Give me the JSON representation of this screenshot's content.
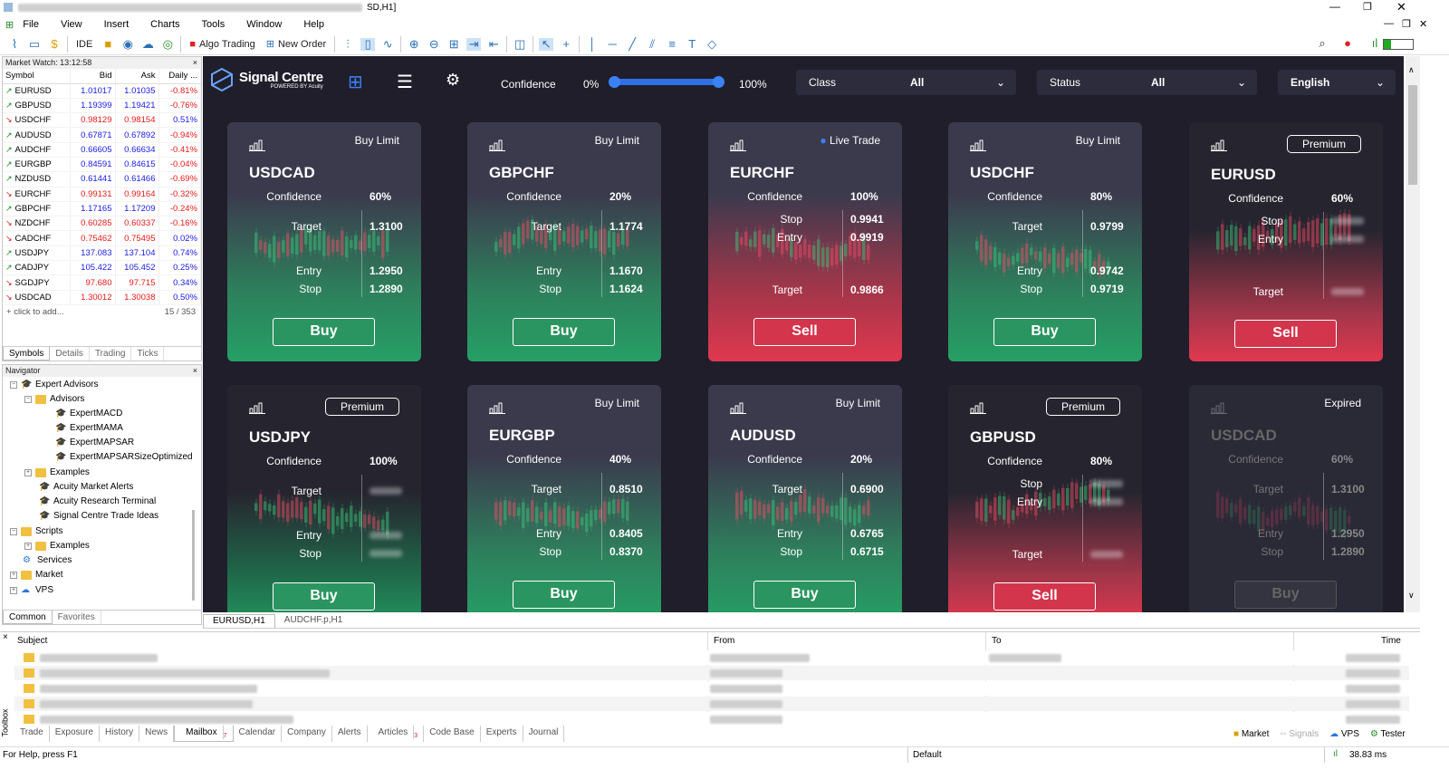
{
  "titlebar": {
    "title_tail": "SD,H1]"
  },
  "menu": [
    "File",
    "View",
    "Insert",
    "Charts",
    "Tools",
    "Window",
    "Help"
  ],
  "toolbar": {
    "ide": "IDE",
    "algo": "Algo Trading",
    "new_order": "New Order"
  },
  "market_watch": {
    "title": "Market Watch: 13:12:58",
    "cols": [
      "Symbol",
      "Bid",
      "Ask",
      "Daily ..."
    ],
    "rows": [
      {
        "s": "EURUSD",
        "b": "1.01017",
        "a": "1.01035",
        "d": "-0.81%",
        "dir": "up"
      },
      {
        "s": "GBPUSD",
        "b": "1.19399",
        "a": "1.19421",
        "d": "-0.76%",
        "dir": "up"
      },
      {
        "s": "USDCHF",
        "b": "0.98129",
        "a": "0.98154",
        "d": "0.51%",
        "dir": "dn"
      },
      {
        "s": "AUDUSD",
        "b": "0.67871",
        "a": "0.67892",
        "d": "-0.94%",
        "dir": "up"
      },
      {
        "s": "AUDCHF",
        "b": "0.66605",
        "a": "0.66634",
        "d": "-0.41%",
        "dir": "up"
      },
      {
        "s": "EURGBP",
        "b": "0.84591",
        "a": "0.84615",
        "d": "-0.04%",
        "dir": "up"
      },
      {
        "s": "NZDUSD",
        "b": "0.61441",
        "a": "0.61466",
        "d": "-0.69%",
        "dir": "up"
      },
      {
        "s": "EURCHF",
        "b": "0.99131",
        "a": "0.99164",
        "d": "-0.32%",
        "dir": "dn"
      },
      {
        "s": "GBPCHF",
        "b": "1.17165",
        "a": "1.17209",
        "d": "-0.24%",
        "dir": "up"
      },
      {
        "s": "NZDCHF",
        "b": "0.60285",
        "a": "0.60337",
        "d": "-0.16%",
        "dir": "dn"
      },
      {
        "s": "CADCHF",
        "b": "0.75462",
        "a": "0.75495",
        "d": "0.02%",
        "dir": "dn"
      },
      {
        "s": "USDJPY",
        "b": "137.083",
        "a": "137.104",
        "d": "0.74%",
        "dir": "up"
      },
      {
        "s": "CADJPY",
        "b": "105.422",
        "a": "105.452",
        "d": "0.25%",
        "dir": "up"
      },
      {
        "s": "SGDJPY",
        "b": "97.680",
        "a": "97.715",
        "d": "0.34%",
        "dir": "dn"
      },
      {
        "s": "USDCAD",
        "b": "1.30012",
        "a": "1.30038",
        "d": "0.50%",
        "dir": "dn"
      }
    ],
    "add": "click to add...",
    "count": "15 / 353",
    "tabs": [
      "Symbols",
      "Details",
      "Trading",
      "Ticks"
    ]
  },
  "navigator": {
    "title": "Navigator",
    "items": [
      "Expert Advisors",
      "Advisors",
      "ExpertMACD",
      "ExpertMAMA",
      "ExpertMAPSAR",
      "ExpertMAPSARSizeOptimized",
      "Examples",
      "Acuity Market Alerts",
      "Acuity Research Terminal",
      "Signal Centre Trade Ideas",
      "Scripts",
      "Examples",
      "Services",
      "Market",
      "VPS"
    ],
    "tabs": [
      "Common",
      "Favorites"
    ]
  },
  "header": {
    "brand": "Signal Centre",
    "brand_sub": "POWERED BY Acuity",
    "confidence_label": "Confidence",
    "conf_min": "0%",
    "conf_max": "100%",
    "class_label": "Class",
    "class_value": "All",
    "status_label": "Status",
    "status_value": "All",
    "language": "English"
  },
  "cards": [
    {
      "sym": "USDCAD",
      "tag": "Buy Limit",
      "conf": "60%",
      "rows": [
        [
          "Target",
          "1.3100"
        ],
        [
          "Entry",
          "1.2950"
        ],
        [
          "Stop",
          "1.2890"
        ]
      ],
      "btn": "Buy",
      "kind": "g"
    },
    {
      "sym": "GBPCHF",
      "tag": "Buy Limit",
      "conf": "20%",
      "rows": [
        [
          "Target",
          "1.1774"
        ],
        [
          "Entry",
          "1.1670"
        ],
        [
          "Stop",
          "1.1624"
        ]
      ],
      "btn": "Buy",
      "kind": "g"
    },
    {
      "sym": "EURCHF",
      "tag": "Live Trade",
      "conf": "100%",
      "rows": [
        [
          "Stop",
          "0.9941"
        ],
        [
          "Entry",
          "0.9919"
        ],
        [
          "Target",
          "0.9866"
        ]
      ],
      "btn": "Sell",
      "kind": "r"
    },
    {
      "sym": "USDCHF",
      "tag": "Buy Limit",
      "conf": "80%",
      "rows": [
        [
          "Target",
          "0.9799"
        ],
        [
          "Entry",
          "0.9742"
        ],
        [
          "Stop",
          "0.9719"
        ]
      ],
      "btn": "Buy",
      "kind": "g"
    },
    {
      "sym": "EURUSD",
      "tag": "Premium",
      "conf": "60%",
      "rows": [
        [
          "Stop",
          ""
        ],
        [
          "Entry",
          ""
        ],
        [
          "Target",
          ""
        ]
      ],
      "btn": "Sell",
      "kind": "pr"
    },
    {
      "sym": "USDJPY",
      "tag": "Premium",
      "conf": "100%",
      "rows": [
        [
          "Target",
          ""
        ],
        [
          "Entry",
          ""
        ],
        [
          "Stop",
          ""
        ]
      ],
      "btn": "Buy",
      "kind": "pg"
    },
    {
      "sym": "EURGBP",
      "tag": "Buy Limit",
      "conf": "40%",
      "rows": [
        [
          "Target",
          "0.8510"
        ],
        [
          "Entry",
          "0.8405"
        ],
        [
          "Stop",
          "0.8370"
        ]
      ],
      "btn": "Buy",
      "kind": "g"
    },
    {
      "sym": "AUDUSD",
      "tag": "Buy Limit",
      "conf": "20%",
      "rows": [
        [
          "Target",
          "0.6900"
        ],
        [
          "Entry",
          "0.6765"
        ],
        [
          "Stop",
          "0.6715"
        ]
      ],
      "btn": "Buy",
      "kind": "g"
    },
    {
      "sym": "GBPUSD",
      "tag": "Premium",
      "conf": "80%",
      "rows": [
        [
          "Stop",
          ""
        ],
        [
          "Entry",
          ""
        ],
        [
          "Target",
          ""
        ]
      ],
      "btn": "Sell",
      "kind": "pr"
    },
    {
      "sym": "USDCAD",
      "tag": "Expired",
      "conf": "60%",
      "rows": [
        [
          "Target",
          "1.3100"
        ],
        [
          "Entry",
          "1.2950"
        ],
        [
          "Stop",
          "1.2890"
        ]
      ],
      "btn": "Buy",
      "kind": "ex"
    }
  ],
  "chart_tabs": [
    "EURUSD,H1",
    "AUDCHF.p,H1"
  ],
  "toolbox": {
    "cols": [
      "Subject",
      "From",
      "To",
      "Time"
    ],
    "tabs": [
      "Trade",
      "Exposure",
      "History",
      "News",
      "Mailbox",
      "Calendar",
      "Company",
      "Alerts",
      "Articles",
      "Code Base",
      "Experts",
      "Journal"
    ],
    "mailbox_badge": "7",
    "articles_badge": "3",
    "right": [
      "Market",
      "Signals",
      "VPS",
      "Tester"
    ],
    "side_label": "Toolbox"
  },
  "status": {
    "help": "For Help, press F1",
    "profile": "Default",
    "ping": "38.83 ms"
  },
  "colors": {
    "green": "#2a9560",
    "red": "#d2354c",
    "panel": "#1f1e2a"
  }
}
